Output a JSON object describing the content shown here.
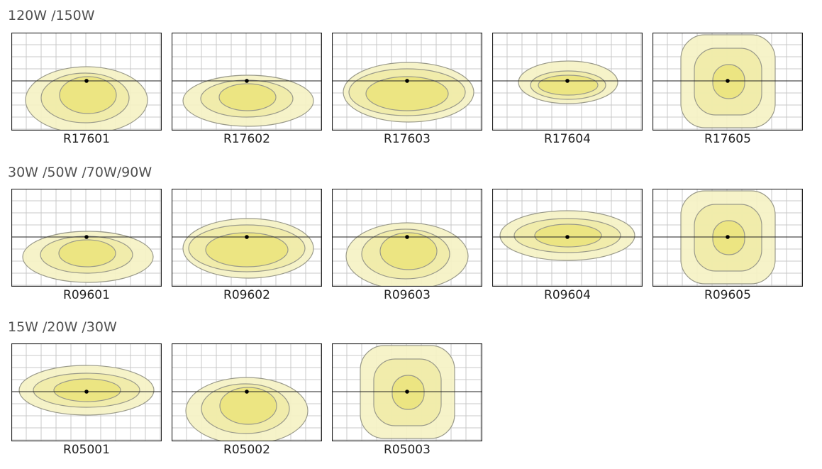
{
  "groups": [
    {
      "title": "120W /150W",
      "diagrams": [
        {
          "code": "R17601",
          "shape": "wide-bottom"
        },
        {
          "code": "R17602",
          "shape": "bat-wing"
        },
        {
          "code": "R17603",
          "shape": "wide-multi"
        },
        {
          "code": "R17604",
          "shape": "compact-oval"
        },
        {
          "code": "R17605",
          "shape": "square"
        }
      ]
    },
    {
      "title": "30W /50W /70W/90W",
      "diagrams": [
        {
          "code": "R09601",
          "shape": "bat-wing"
        },
        {
          "code": "R09602",
          "shape": "wide-multi"
        },
        {
          "code": "R09603",
          "shape": "wide-bottom"
        },
        {
          "code": "R09604",
          "shape": "flat-oval"
        },
        {
          "code": "R09605",
          "shape": "square"
        }
      ]
    },
    {
      "title": "15W /20W /30W",
      "diagrams": [
        {
          "code": "R05001",
          "shape": "flat-oval"
        },
        {
          "code": "R05002",
          "shape": "wide-bottom"
        },
        {
          "code": "R05003",
          "shape": "square"
        }
      ]
    }
  ],
  "colors": {
    "zone_outer": "#f5f2c4",
    "zone_mid": "#f0eca8",
    "zone_inner": "#ebe47e",
    "contour": "#9a9a8a",
    "grid": "#c8c8c8",
    "frame": "#222222",
    "axis": "#222222"
  }
}
